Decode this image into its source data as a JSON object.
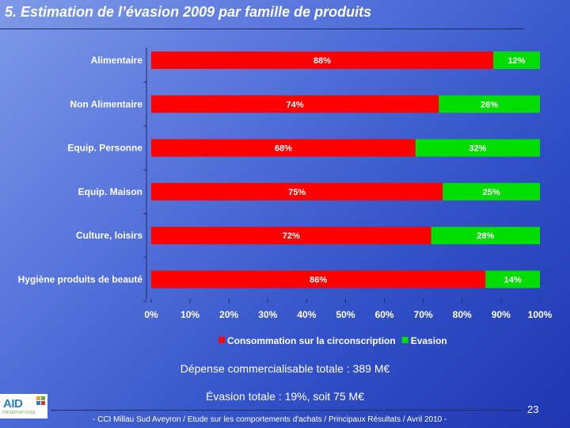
{
  "slide": {
    "title": "5. Estimation de l’évasion 2009 par famille de produits",
    "depense": "Dépense commercialisable totale : 389 M€",
    "evasion": "Évasion totale : 19%, soit 75 M€",
    "footer": "- CCI Millau Sud Aveyron / Etude sur les comportements d'achats / Principaux Résultats / Avril 2010 -",
    "page_number": "23",
    "logo": {
      "text": "AID",
      "subtext": "OBSERVATOIRE"
    }
  },
  "colors": {
    "consommation": "#ff0000",
    "evasion": "#00dd00",
    "background": "#3f5fd0"
  },
  "chart_data": {
    "type": "bar",
    "orientation": "horizontal",
    "stacked": true,
    "title": "",
    "xlabel": "",
    "ylabel": "",
    "xlim": [
      0,
      100
    ],
    "ticks": [
      "0%",
      "10%",
      "20%",
      "30%",
      "40%",
      "50%",
      "60%",
      "70%",
      "80%",
      "90%",
      "100%"
    ],
    "categories": [
      "Alimentaire",
      "Non Alimentaire",
      "Equip. Personne",
      "Equip. Maison",
      "Culture, loisirs",
      "Hygiène produits de beauté"
    ],
    "series": [
      {
        "name": "Consommation sur la circonscription",
        "color": "#ff0000",
        "values": [
          88,
          74,
          68,
          75,
          72,
          86
        ],
        "labels": [
          "88%",
          "74%",
          "68%",
          "75%",
          "72%",
          "86%"
        ]
      },
      {
        "name": "Evasion",
        "color": "#00dd00",
        "values": [
          12,
          26,
          32,
          25,
          28,
          14
        ],
        "labels": [
          "12%",
          "26%",
          "32%",
          "25%",
          "28%",
          "14%"
        ]
      }
    ],
    "legend": "bottom-center",
    "grid": false
  }
}
